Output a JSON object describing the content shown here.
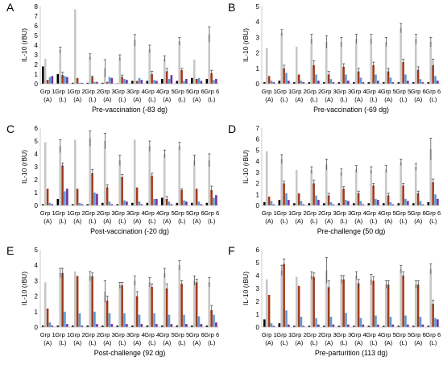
{
  "figure": {
    "title": ""
  },
  "chart_data": [
    {
      "type": "bar",
      "panel_letter": "A",
      "xlabel": "Pre-vaccination (-83 dg)",
      "ylabel": "IL-10 (rBU)",
      "ylim": [
        0,
        8
      ],
      "yticks": [
        0,
        1,
        2,
        3,
        4,
        5,
        6,
        7,
        8
      ],
      "grid": "none",
      "legend": "none",
      "categories": [
        [
          "Grp 1",
          "(A)"
        ],
        [
          "Grp 1",
          "(L)"
        ],
        [
          "Grp 2",
          "(A)"
        ],
        [
          "Grp 2",
          "(L)"
        ],
        [
          "Grp 3",
          "(A)"
        ],
        [
          "Grp 3",
          "(L)"
        ],
        [
          "Grp 4",
          "(A)"
        ],
        [
          "Grp 4",
          "(L)"
        ],
        [
          "Grp 5",
          "(A)"
        ],
        [
          "Grp 5",
          "(L)"
        ],
        [
          "Grp 6",
          "(A)"
        ],
        [
          "Grp 6",
          "(L)"
        ]
      ],
      "series": [
        {
          "color": "#000000",
          "values": [
            1.8,
            1.0,
            0.1,
            0.1,
            0.1,
            0.05,
            0.3,
            0.3,
            0.5,
            0.3,
            0.6,
            0.5
          ]
        },
        {
          "color": "#c7c7c7",
          "values": [
            2.6,
            3.5,
            7.7,
            2.8,
            1.6,
            2.7,
            4.5,
            3.6,
            2.6,
            4.4,
            2.5,
            5.1
          ],
          "err": [
            0,
            0.3,
            0,
            0.3,
            0.9,
            0.3,
            0.6,
            0.4,
            0.3,
            0.4,
            0,
            0.8
          ]
        },
        {
          "color": "#a33a1a",
          "values": [
            0.4,
            0.9,
            0.6,
            0.7,
            0.2,
            0.7,
            0.3,
            1.0,
            1.3,
            1.4,
            0.5,
            1.1
          ],
          "err": [
            0,
            0.3,
            0,
            0.1,
            0,
            0.2,
            0,
            0.3,
            0.3,
            0.2,
            0,
            0.3
          ]
        },
        {
          "color": "#5b9bd5",
          "values": [
            0.7,
            0.8,
            0.1,
            0.2,
            0.7,
            0.5,
            0.6,
            0.4,
            0.5,
            0.3,
            0.6,
            0.4
          ]
        },
        {
          "color": "#7030a0",
          "values": [
            0.8,
            0.7,
            0.1,
            0.2,
            0.6,
            0.4,
            0.4,
            0.3,
            0.9,
            0.5,
            0.3,
            0.5
          ]
        }
      ]
    },
    {
      "type": "bar",
      "panel_letter": "B",
      "xlabel": "Pre-vaccination (-69 dg)",
      "ylabel": "IL-10 (rBU)",
      "ylim": [
        0,
        5
      ],
      "yticks": [
        0,
        1,
        2,
        3,
        4,
        5
      ],
      "grid": "none",
      "legend": "none",
      "categories": [
        [
          "Grp 1",
          "(A)"
        ],
        [
          "Grp 1",
          "(L)"
        ],
        [
          "Grp 2",
          "(A)"
        ],
        [
          "Grp 2",
          "(L)"
        ],
        [
          "Grp 3",
          "(A)"
        ],
        [
          "Grp 3",
          "(L)"
        ],
        [
          "Grp 4",
          "(A)"
        ],
        [
          "Grp 4",
          "(L)"
        ],
        [
          "Grp 5",
          "(A)"
        ],
        [
          "Grp 5",
          "(L)"
        ],
        [
          "Grp 6",
          "(A)"
        ],
        [
          "Grp 6",
          "(L)"
        ]
      ],
      "series": [
        {
          "color": "#000000",
          "values": [
            0.1,
            0.2,
            0.1,
            0.1,
            0.1,
            0.1,
            0.1,
            0.1,
            0.1,
            0.1,
            0.1,
            0.1
          ]
        },
        {
          "color": "#c7c7c7",
          "values": [
            2.3,
            3.3,
            2.4,
            2.9,
            2.7,
            2.7,
            2.9,
            2.9,
            2.7,
            3.6,
            2.9,
            2.7
          ],
          "err": [
            0,
            0.2,
            0,
            0.3,
            0.4,
            0.3,
            0.3,
            0.3,
            0.3,
            0.3,
            0.3,
            0.3
          ]
        },
        {
          "color": "#a33a1a",
          "values": [
            0.5,
            1.0,
            0.6,
            1.2,
            0.6,
            1.1,
            0.8,
            1.2,
            0.8,
            1.4,
            0.9,
            1.2
          ],
          "err": [
            0,
            0.2,
            0,
            0.3,
            0.2,
            0.2,
            0.2,
            0.2,
            0.2,
            0.2,
            0.2,
            0.4
          ]
        },
        {
          "color": "#5b9bd5",
          "values": [
            0.2,
            0.7,
            0.2,
            0.6,
            0.3,
            0.6,
            0.4,
            0.6,
            0.4,
            0.6,
            0.3,
            0.5
          ]
        },
        {
          "color": "#7030a0",
          "values": [
            0.1,
            0.2,
            0.1,
            0.2,
            0.1,
            0.2,
            0.1,
            0.2,
            0.1,
            0.2,
            0.1,
            0.2
          ]
        }
      ]
    },
    {
      "type": "bar",
      "panel_letter": "C",
      "xlabel": "Post-vaccination (-20 dg)",
      "ylabel": "IL-10 (rBU)",
      "ylim": [
        0,
        6
      ],
      "yticks": [
        0,
        1,
        2,
        3,
        4,
        5,
        6
      ],
      "grid": "none",
      "legend": "none",
      "categories": [
        [
          "Grp 1",
          "(A)"
        ],
        [
          "Grp 1",
          "(L)"
        ],
        [
          "Grp 2",
          "(A)"
        ],
        [
          "Grp 2",
          "(L)"
        ],
        [
          "Grp 3",
          "(A)"
        ],
        [
          "Grp 3",
          "(L)"
        ],
        [
          "Grp 4",
          "(A)"
        ],
        [
          "Grp 4",
          "(L)"
        ],
        [
          "Grp 5",
          "(A)"
        ],
        [
          "Grp 5",
          "(L)"
        ],
        [
          "Grp 6",
          "(A)"
        ],
        [
          "Grp 6",
          "(L)"
        ]
      ],
      "series": [
        {
          "color": "#000000",
          "values": [
            0.1,
            0.5,
            0.1,
            0.1,
            0.2,
            0.1,
            0.2,
            0.2,
            0.6,
            0.2,
            0.2,
            0.2
          ]
        },
        {
          "color": "#c7c7c7",
          "values": [
            4.9,
            4.6,
            5.1,
            5.2,
            5.0,
            3.5,
            5.1,
            4.6,
            4.0,
            4.6,
            3.5,
            3.5
          ],
          "err": [
            0,
            0.5,
            0,
            0.6,
            0.6,
            0.4,
            0,
            0.4,
            0.3,
            0.3,
            0.4,
            0.5
          ]
        },
        {
          "color": "#a33a1a",
          "values": [
            1.3,
            3.1,
            1.3,
            2.5,
            1.4,
            2.2,
            1.4,
            2.3,
            0.5,
            1.2,
            1.3,
            1.2
          ],
          "err": [
            0,
            0.2,
            0,
            0.3,
            0.2,
            0.2,
            0,
            0.2,
            0.2,
            0.1,
            0,
            0.3
          ]
        },
        {
          "color": "#5b9bd5",
          "values": [
            0.2,
            1.1,
            0.2,
            1.0,
            0.3,
            0.4,
            0.3,
            0.5,
            0.3,
            0.4,
            0.3,
            0.6
          ]
        },
        {
          "color": "#7030a0",
          "values": [
            0.1,
            1.3,
            0.1,
            0.9,
            0.1,
            0.3,
            0.1,
            0.5,
            0.1,
            0.3,
            0.1,
            0.8
          ]
        }
      ]
    },
    {
      "type": "bar",
      "panel_letter": "D",
      "xlabel": "Pre-challenge (50 dg)",
      "ylabel": "IL-10 (rBU)",
      "ylim": [
        0,
        7
      ],
      "yticks": [
        0,
        1,
        2,
        3,
        4,
        5,
        6,
        7
      ],
      "grid": "none",
      "legend": "none",
      "categories": [
        [
          "Grp 1",
          "(A)"
        ],
        [
          "Grp 1",
          "(L)"
        ],
        [
          "Grp 2",
          "(A)"
        ],
        [
          "Grp 2",
          "(L)"
        ],
        [
          "Grp 3",
          "(A)"
        ],
        [
          "Grp 3",
          "(L)"
        ],
        [
          "Grp 4",
          "(A)"
        ],
        [
          "Grp 4",
          "(L)"
        ],
        [
          "Grp 5",
          "(A)"
        ],
        [
          "Grp 5",
          "(L)"
        ],
        [
          "Grp 6",
          "(A)"
        ],
        [
          "Grp 6",
          "(L)"
        ]
      ],
      "series": [
        {
          "color": "#000000",
          "values": [
            0.3,
            0.5,
            0.2,
            0.2,
            0.2,
            0.2,
            0.2,
            0.2,
            0.2,
            0.2,
            0.2,
            0.3
          ]
        },
        {
          "color": "#c7c7c7",
          "values": [
            4.9,
            4.2,
            3.2,
            3.2,
            3.7,
            3.0,
            3.3,
            3.2,
            3.3,
            3.9,
            3.5,
            5.1
          ],
          "err": [
            0,
            0.4,
            0,
            0.3,
            0.5,
            0.3,
            0.3,
            0.3,
            0.3,
            0.3,
            0.3,
            1.0
          ]
        },
        {
          "color": "#a33a1a",
          "values": [
            0.8,
            2.0,
            1.1,
            2.0,
            0.9,
            1.5,
            1.1,
            1.8,
            0.9,
            1.8,
            1.1,
            2.1
          ],
          "err": [
            0,
            0.2,
            0,
            0.3,
            0.2,
            0.2,
            0.2,
            0.2,
            0.2,
            0.2,
            0.2,
            0.3
          ]
        },
        {
          "color": "#5b9bd5",
          "values": [
            0.4,
            1.1,
            0.4,
            0.9,
            0.3,
            0.5,
            0.4,
            0.6,
            0.3,
            0.6,
            0.4,
            1.0
          ]
        },
        {
          "color": "#7030a0",
          "values": [
            0.1,
            0.5,
            0.1,
            0.5,
            0.1,
            0.4,
            0.1,
            0.5,
            0.1,
            0.4,
            0.1,
            0.6
          ]
        }
      ]
    },
    {
      "type": "bar",
      "panel_letter": "E",
      "xlabel": "Post-challenge (92 dg)",
      "ylabel": "IL-10 (rBU)",
      "ylim": [
        0,
        5
      ],
      "yticks": [
        0,
        1,
        2,
        3,
        4,
        5
      ],
      "grid": "none",
      "legend": "none",
      "categories": [
        [
          "Grp 1",
          "(A)"
        ],
        [
          "Grp 1",
          "(L)"
        ],
        [
          "Grp 2",
          "(A)"
        ],
        [
          "Grp 2",
          "(L)"
        ],
        [
          "Grp 3",
          "(A)"
        ],
        [
          "Grp 3",
          "(L)"
        ],
        [
          "Grp 4",
          "(A)"
        ],
        [
          "Grp 4",
          "(L)"
        ],
        [
          "Grp 5",
          "(A)"
        ],
        [
          "Grp 5",
          "(L)"
        ],
        [
          "Grp 6",
          "(A)"
        ],
        [
          "Grp 6",
          "(L)"
        ]
      ],
      "series": [
        {
          "color": "#000000",
          "values": [
            0.1,
            0.1,
            0.1,
            0.1,
            0.1,
            0.1,
            0.1,
            0.1,
            0.1,
            0.1,
            0.1,
            0.1
          ]
        },
        {
          "color": "#c7c7c7",
          "values": [
            2.9,
            3.5,
            3.6,
            3.3,
            2.3,
            2.7,
            3.0,
            2.9,
            3.5,
            4.0,
            3.0,
            2.9
          ],
          "err": [
            0,
            0.3,
            0,
            0.3,
            0.7,
            0.2,
            0.3,
            0.3,
            0.3,
            0.3,
            0.3,
            0.3
          ]
        },
        {
          "color": "#a33a1a",
          "values": [
            1.2,
            3.5,
            3.3,
            3.3,
            1.7,
            2.7,
            2.0,
            2.6,
            2.5,
            2.8,
            2.9,
            1.1
          ],
          "err": [
            0,
            0.3,
            0,
            0.2,
            0.3,
            0.2,
            0.3,
            0.2,
            0.3,
            0.2,
            0.2,
            0.3
          ]
        },
        {
          "color": "#5b9bd5",
          "values": [
            0.3,
            1.0,
            0.9,
            1.0,
            0.9,
            0.9,
            0.8,
            0.9,
            0.8,
            0.8,
            0.7,
            0.8
          ]
        },
        {
          "color": "#7030a0",
          "values": [
            0.1,
            0.2,
            0.1,
            0.2,
            0.2,
            0.2,
            0.2,
            0.2,
            0.2,
            0.2,
            0.2,
            0.3
          ]
        }
      ]
    },
    {
      "type": "bar",
      "panel_letter": "F",
      "xlabel": "Pre-parturition (113 dg)",
      "ylabel": "IL-10 (rBU)",
      "ylim": [
        0,
        6
      ],
      "yticks": [
        0,
        1,
        2,
        3,
        4,
        5,
        6
      ],
      "grid": "none",
      "legend": "none",
      "categories": [
        [
          "Grp 1",
          "(A)"
        ],
        [
          "Grp 1",
          "(L)"
        ],
        [
          "Grp 2",
          "(A)"
        ],
        [
          "Grp 2",
          "(L)"
        ],
        [
          "Grp 3",
          "(A)"
        ],
        [
          "Grp 3",
          "(L)"
        ],
        [
          "Grp 4",
          "(A)"
        ],
        [
          "Grp 4",
          "(L)"
        ],
        [
          "Grp 5",
          "(A)"
        ],
        [
          "Grp 5",
          "(L)"
        ],
        [
          "Grp 6",
          "(A)"
        ],
        [
          "Grp 6",
          "(L)"
        ]
      ],
      "series": [
        {
          "color": "#000000",
          "values": [
            0.6,
            0.3,
            0.1,
            0.1,
            0.1,
            0.1,
            0.1,
            0.1,
            0.1,
            0.1,
            0.1,
            0.1
          ]
        },
        {
          "color": "#c7c7c7",
          "values": [
            3.7,
            4.4,
            3.9,
            4.0,
            4.4,
            3.7,
            4.0,
            3.7,
            3.3,
            4.5,
            3.3,
            4.5
          ],
          "err": [
            0,
            0.4,
            0,
            0.3,
            1.0,
            0.3,
            0.3,
            0.4,
            0.3,
            0.3,
            0.3,
            0.4
          ]
        },
        {
          "color": "#a33a1a",
          "values": [
            2.5,
            4.9,
            3.2,
            3.9,
            3.1,
            3.7,
            3.4,
            3.6,
            3.3,
            4.0,
            3.3,
            1.8
          ],
          "err": [
            0,
            0.4,
            0,
            0.3,
            0.5,
            0.3,
            0.3,
            0.3,
            0.3,
            0.3,
            0.3,
            0.3
          ]
        },
        {
          "color": "#5b9bd5",
          "values": [
            0.3,
            1.3,
            0.8,
            0.7,
            0.8,
            1.1,
            0.7,
            0.9,
            0.8,
            0.9,
            0.8,
            0.7
          ]
        },
        {
          "color": "#7030a0",
          "values": [
            0.1,
            0.2,
            0.1,
            0.2,
            0.2,
            0.2,
            0.2,
            0.2,
            0.2,
            0.2,
            0.2,
            0.6
          ]
        }
      ]
    }
  ]
}
